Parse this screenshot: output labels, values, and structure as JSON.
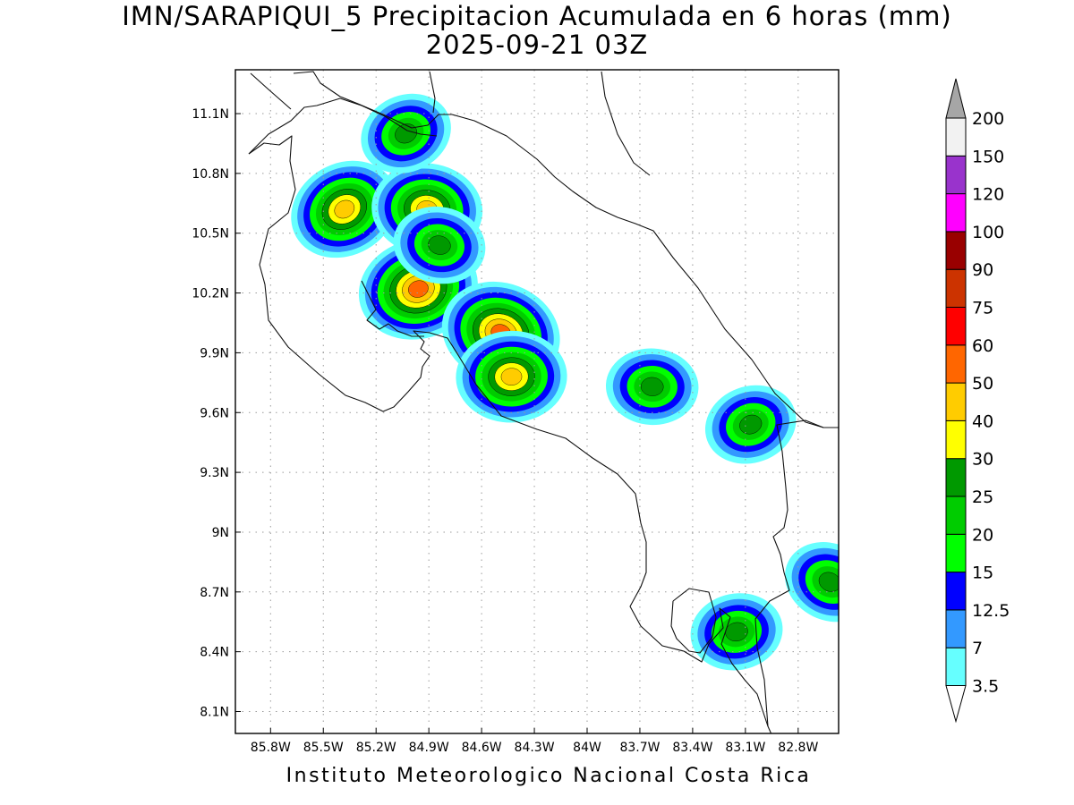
{
  "title": {
    "line1": "IMN/SARAPIQUI_5 Precipitacion Acumulada en 6 horas (mm)",
    "line2": "2025-09-21 03Z"
  },
  "footer": "Instituto Meteorologico Nacional Costa Rica",
  "map": {
    "lat_ticks": [
      "11.1N",
      "10.8N",
      "10.5N",
      "10.2N",
      "9.9N",
      "9.6N",
      "9.3N",
      "9N",
      "8.7N",
      "8.4N",
      "8.1N"
    ],
    "lon_ticks": [
      "85.8W",
      "85.5W",
      "85.2W",
      "84.9W",
      "84.6W",
      "84.3W",
      "84W",
      "83.7W",
      "83.4W",
      "83.1W",
      "82.8W"
    ],
    "grid": "dotted"
  },
  "colorbar": {
    "levels": [
      "3.5",
      "7",
      "12.5",
      "15",
      "20",
      "25",
      "30",
      "40",
      "50",
      "60",
      "75",
      "90",
      "100",
      "120",
      "150",
      "200"
    ],
    "colors": [
      "#66ffff",
      "#3399ff",
      "#0000ff",
      "#00ff00",
      "#00cc00",
      "#009900",
      "#ffff00",
      "#ffcc00",
      "#ff6600",
      "#ff0000",
      "#cc3300",
      "#990000",
      "#ff00ff",
      "#9933cc",
      "#f2f2f2"
    ],
    "over_color": "#a6a6a6",
    "under_color": "#ffffff"
  },
  "precip_cells": [
    {
      "lon": -85.38,
      "lat": 10.62,
      "max_mm": 42
    },
    {
      "lon": -84.91,
      "lat": 10.62,
      "max_mm": 45
    },
    {
      "lon": -84.96,
      "lat": 10.22,
      "max_mm": 50
    },
    {
      "lon": -84.49,
      "lat": 10.0,
      "max_mm": 55
    },
    {
      "lon": -84.43,
      "lat": 9.78,
      "max_mm": 40
    },
    {
      "lon": -85.03,
      "lat": 11.0,
      "max_mm": 25
    },
    {
      "lon": -84.84,
      "lat": 10.44,
      "max_mm": 28
    },
    {
      "lon": -83.15,
      "lat": 8.5,
      "max_mm": 28
    },
    {
      "lon": -82.62,
      "lat": 8.75,
      "max_mm": 25
    },
    {
      "lon": -83.63,
      "lat": 9.73,
      "max_mm": 25
    },
    {
      "lon": -83.07,
      "lat": 9.54,
      "max_mm": 25
    }
  ]
}
